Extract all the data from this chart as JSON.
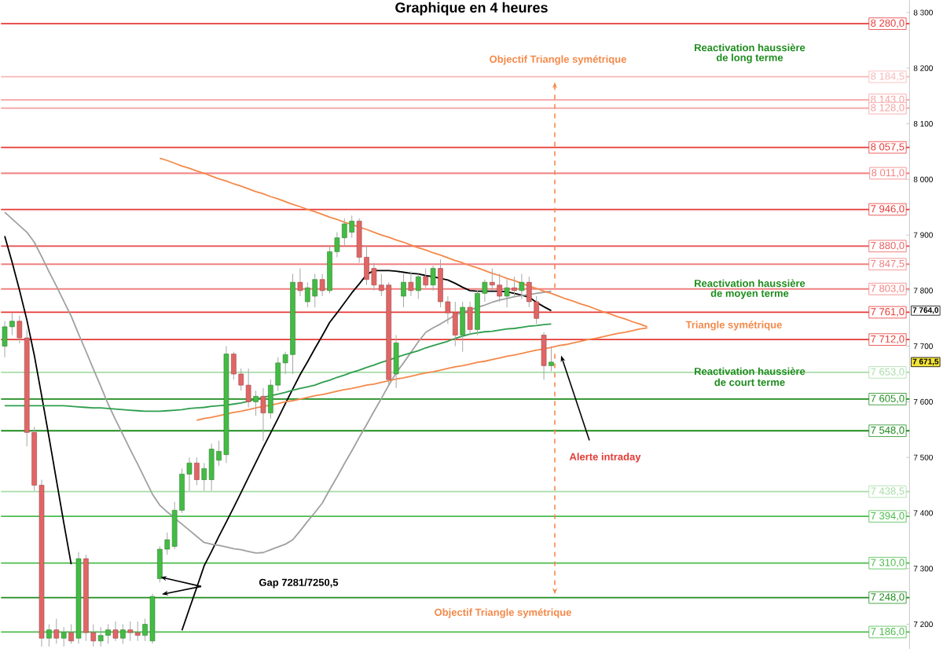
{
  "chart_data": {
    "type": "candlestick",
    "title": "Graphique en 4 heures",
    "categories": [
      null,
      null,
      null,
      null,
      null,
      null,
      null,
      null,
      null,
      null,
      null,
      null,
      null,
      null,
      null,
      null,
      null,
      null,
      null,
      null,
      null,
      null,
      null,
      null,
      null,
      null,
      null,
      null,
      null,
      null,
      null,
      null,
      null,
      null,
      null,
      null,
      null,
      null,
      null,
      null,
      null,
      null,
      null,
      null,
      null,
      null,
      null,
      null,
      null,
      null,
      null,
      null,
      null,
      null,
      null,
      null,
      null,
      null,
      null,
      null,
      null,
      null,
      null,
      null,
      null,
      null,
      null,
      null,
      null,
      null,
      null,
      null,
      null,
      null,
      null,
      null,
      null,
      null,
      null,
      null,
      null,
      null,
      null,
      null,
      null,
      null,
      null,
      null,
      null,
      null,
      null,
      null,
      null,
      null,
      null,
      null,
      null,
      null,
      null,
      null,
      null,
      null,
      null,
      null,
      null,
      null,
      null,
      null,
      null,
      null,
      null,
      null,
      null,
      null,
      null,
      null,
      null,
      null,
      null,
      null,
      null,
      null,
      null
    ],
    "ohlc": [
      [
        7700,
        7745,
        7680,
        7735
      ],
      [
        7735,
        7760,
        7720,
        7745
      ],
      [
        7745,
        7755,
        7705,
        7715
      ],
      [
        7715,
        7730,
        7520,
        7545
      ],
      [
        7545,
        7555,
        7440,
        7450
      ],
      [
        7450,
        7460,
        7160,
        7175
      ],
      [
        7175,
        7200,
        7160,
        7190
      ],
      [
        7190,
        7210,
        7165,
        7175
      ],
      [
        7175,
        7195,
        7160,
        7185
      ],
      [
        7185,
        7200,
        7165,
        7170
      ],
      [
        7175,
        7330,
        7165,
        7318
      ],
      [
        7318,
        7325,
        7170,
        7185
      ],
      [
        7185,
        7200,
        7160,
        7170
      ],
      [
        7170,
        7195,
        7160,
        7180
      ],
      [
        7180,
        7200,
        7165,
        7190
      ],
      [
        7190,
        7205,
        7170,
        7175
      ],
      [
        7175,
        7200,
        7165,
        7190
      ],
      [
        7190,
        7205,
        7170,
        7185
      ],
      [
        7185,
        7205,
        7170,
        7180
      ],
      [
        7180,
        7210,
        7170,
        7200
      ],
      [
        7170,
        7255,
        7165,
        7250
      ],
      [
        7282,
        7340,
        7275,
        7335
      ],
      [
        7335,
        7365,
        7325,
        7352
      ],
      [
        7340,
        7420,
        7335,
        7405
      ],
      [
        7405,
        7480,
        7400,
        7470
      ],
      [
        7470,
        7500,
        7440,
        7490
      ],
      [
        7490,
        7500,
        7450,
        7460
      ],
      [
        7460,
        7490,
        7440,
        7480
      ],
      [
        7460,
        7525,
        7440,
        7515
      ],
      [
        7495,
        7530,
        7485,
        7511
      ],
      [
        7505,
        7700,
        7490,
        7686
      ],
      [
        7686,
        7690,
        7640,
        7650
      ],
      [
        7650,
        7660,
        7620,
        7630
      ],
      [
        7630,
        7660,
        7590,
        7600
      ],
      [
        7600,
        7620,
        7575,
        7610
      ],
      [
        7610,
        7625,
        7530,
        7580
      ],
      [
        7580,
        7640,
        7570,
        7630
      ],
      [
        7630,
        7680,
        7620,
        7670
      ],
      [
        7670,
        7690,
        7650,
        7685
      ],
      [
        7685,
        7830,
        7650,
        7815
      ],
      [
        7815,
        7840,
        7790,
        7800
      ],
      [
        7780,
        7815,
        7770,
        7805
      ],
      [
        7790,
        7830,
        7770,
        7820
      ],
      [
        7820,
        7830,
        7790,
        7800
      ],
      [
        7800,
        7880,
        7795,
        7870
      ],
      [
        7870,
        7905,
        7860,
        7895
      ],
      [
        7895,
        7930,
        7880,
        7920
      ],
      [
        7905,
        7935,
        7895,
        7925
      ],
      [
        7925,
        7930,
        7850,
        7860
      ],
      [
        7860,
        7880,
        7810,
        7820
      ],
      [
        7840,
        7850,
        7800,
        7810
      ],
      [
        7810,
        7830,
        7790,
        7800
      ],
      [
        7810,
        7815,
        7630,
        7640
      ],
      [
        7650,
        7720,
        7625,
        7706
      ],
      [
        7790,
        7830,
        7770,
        7815
      ],
      [
        7815,
        7835,
        7790,
        7800
      ],
      [
        7800,
        7830,
        7785,
        7825
      ],
      [
        7825,
        7840,
        7805,
        7810
      ],
      [
        7810,
        7845,
        7800,
        7840
      ],
      [
        7840,
        7856,
        7770,
        7780
      ],
      [
        7780,
        7790,
        7740,
        7760
      ],
      [
        7760,
        7780,
        7700,
        7720
      ],
      [
        7720,
        7780,
        7690,
        7770
      ],
      [
        7770,
        7780,
        7720,
        7730
      ],
      [
        7730,
        7800,
        7720,
        7795
      ],
      [
        7795,
        7820,
        7780,
        7815
      ],
      [
        7815,
        7840,
        7800,
        7810
      ],
      [
        7810,
        7830,
        7780,
        7790
      ],
      [
        7790,
        7820,
        7770,
        7805
      ],
      [
        7805,
        7825,
        7790,
        7800
      ],
      [
        7800,
        7830,
        7785,
        7815
      ],
      [
        7815,
        7825,
        7770,
        7780
      ],
      [
        7780,
        7790,
        7740,
        7750
      ],
      [
        7720,
        7725,
        7640,
        7665
      ],
      [
        7665,
        7700,
        7655,
        7671.5
      ],
      null,
      null,
      null,
      null,
      null,
      null,
      null,
      null,
      null,
      null,
      null,
      null,
      null,
      null,
      null,
      null,
      null,
      null,
      null,
      null,
      null,
      null,
      null,
      null,
      null,
      null,
      null,
      null,
      null,
      null,
      null,
      null,
      null,
      null,
      null,
      null,
      null,
      null,
      null,
      null,
      null,
      null,
      null,
      null,
      null,
      null,
      null,
      null
    ],
    "series": [
      {
        "type": "line",
        "color": "#000000",
        "values": [
          7898,
          7851,
          7801,
          7747,
          7684,
          7611,
          7536,
          7459,
          7382,
          7308,
          null,
          null,
          null,
          null,
          null,
          null,
          null,
          null,
          null,
          null,
          null,
          null,
          null,
          null,
          7189,
          7228,
          7266,
          7305,
          7331,
          7358,
          7384,
          7410,
          7437,
          7464,
          7491,
          7518,
          7544,
          7570,
          7597,
          7623,
          7649,
          7672,
          7696,
          7719,
          7743,
          7760,
          7778,
          7796,
          7812,
          7829,
          7836,
          7836,
          7836,
          7835,
          7833,
          7831,
          7830,
          7827,
          7825,
          7822,
          7819,
          7813,
          7806,
          7800,
          7799,
          7799,
          7799,
          7799,
          7798,
          7795,
          7792,
          7788,
          7779,
          7771,
          7764,
          null,
          null,
          null,
          null,
          null,
          null,
          null,
          null,
          null,
          null,
          null,
          null,
          null,
          null,
          null,
          null,
          null,
          null,
          null,
          null,
          null,
          null,
          null,
          null,
          null,
          null,
          null,
          null,
          null,
          null,
          null,
          null,
          null,
          null,
          null,
          null,
          null,
          null,
          null,
          null,
          null,
          null,
          null,
          null,
          null,
          null,
          null,
          null
        ]
      },
      {
        "type": "line",
        "color": "#a0a0a0",
        "values": [
          7941,
          7929,
          7917,
          7905,
          7887,
          7861,
          7834,
          7808,
          7781,
          7754,
          7722,
          7691,
          7659,
          7628,
          7596,
          7568,
          7541,
          7514,
          7488,
          7461,
          7434,
          7414,
          7402,
          7391,
          7380,
          7369,
          7358,
          7347,
          7344,
          7342,
          7339,
          7336,
          7334,
          7331,
          7328,
          7329,
          7334,
          7339,
          7344,
          7352,
          7368,
          7385,
          7401,
          7418,
          7442,
          7465,
          7489,
          7512,
          7536,
          7559,
          7583,
          7606,
          7630,
          7652,
          7670,
          7689,
          7708,
          7725,
          7733,
          7740,
          7748,
          7756,
          7761,
          7765,
          7770,
          7774,
          7779,
          7783,
          7786,
          7789,
          7791,
          7793,
          7795,
          7797,
          7799,
          null,
          null,
          null,
          null,
          null,
          null,
          null,
          null,
          null,
          null,
          null,
          null,
          null,
          null,
          null,
          null,
          null,
          null,
          null,
          null,
          null,
          null,
          null,
          null,
          null,
          null,
          null,
          null,
          null,
          null,
          null,
          null,
          null,
          null,
          null,
          null,
          null,
          null,
          null,
          null,
          null,
          null,
          null,
          null,
          null,
          null,
          null,
          null
        ]
      },
      {
        "type": "line",
        "color": "#2e9e4e",
        "values": [
          7593,
          7593,
          7593,
          7593,
          7593,
          7593,
          7593,
          7593,
          7593,
          7592,
          7591,
          7590,
          7589,
          7589,
          7588,
          7587,
          7586,
          7585,
          7584,
          7583,
          7583,
          7583,
          7584,
          7585,
          7586,
          7588,
          7589,
          7590,
          7592,
          7593,
          7594,
          7596,
          7598,
          7601,
          7605,
          7608,
          7611,
          7614,
          7617,
          7621,
          7624,
          7627,
          7630,
          7635,
          7639,
          7644,
          7648,
          7653,
          7657,
          7662,
          7666,
          7671,
          7675,
          7680,
          7684,
          7688,
          7692,
          7697,
          7701,
          7705,
          7709,
          7714,
          7718,
          7722,
          7724,
          7726,
          7727,
          7729,
          7731,
          7732,
          7734,
          7736,
          7737,
          7739,
          7740,
          null,
          null,
          null,
          null,
          null,
          null,
          null,
          null,
          null,
          null,
          null,
          null,
          null,
          null,
          null,
          null,
          null,
          null,
          null,
          null,
          null,
          null,
          null,
          null,
          null,
          null,
          null,
          null,
          null,
          null,
          null,
          null,
          null,
          null,
          null,
          null,
          null,
          null,
          null,
          null,
          null,
          null,
          null,
          null,
          null,
          null,
          null,
          null
        ]
      },
      {
        "type": "line",
        "color": "#f4894a",
        "values": [
          null,
          null,
          null,
          null,
          null,
          null,
          null,
          null,
          null,
          null,
          null,
          null,
          null,
          null,
          null,
          null,
          null,
          null,
          null,
          null,
          null,
          8038,
          8034,
          8029,
          8024,
          8020,
          8015,
          8011,
          8006,
          8001,
          7997,
          7992,
          7988,
          7983,
          7978,
          7974,
          7969,
          7965,
          7960,
          7955,
          7951,
          7946,
          7942,
          7937,
          7932,
          7928,
          7923,
          7919,
          7914,
          7910,
          7905,
          7900,
          7896,
          7891,
          7887,
          7882,
          7877,
          7873,
          7868,
          7864,
          7859,
          7854,
          7850,
          7845,
          7841,
          7836,
          7831,
          7827,
          7822,
          7818,
          7813,
          7808,
          7804,
          7799,
          7795,
          7790,
          7785,
          7781,
          7776,
          7772,
          7767,
          7762,
          7758,
          7753,
          7749,
          7744,
          7740,
          7735,
          null,
          null,
          null,
          null,
          null,
          null,
          null,
          null,
          null,
          null,
          null,
          null,
          null,
          null,
          null,
          null,
          null,
          null,
          null,
          null,
          null,
          null,
          null,
          null,
          null,
          null,
          null,
          null,
          null,
          null,
          null,
          null,
          null,
          null,
          null
        ]
      },
      {
        "type": "line",
        "color": "#f4894a",
        "values": [
          null,
          null,
          null,
          null,
          null,
          null,
          null,
          null,
          null,
          null,
          null,
          null,
          null,
          null,
          null,
          null,
          null,
          null,
          null,
          null,
          null,
          null,
          null,
          null,
          null,
          null,
          7567,
          7570,
          7572,
          7575,
          7578,
          7581,
          7583,
          7586,
          7589,
          7592,
          7594,
          7597,
          7600,
          7602,
          7605,
          7608,
          7611,
          7613,
          7616,
          7619,
          7622,
          7624,
          7627,
          7630,
          7632,
          7635,
          7638,
          7641,
          7643,
          7646,
          7649,
          7652,
          7654,
          7657,
          7660,
          7663,
          7665,
          7668,
          7671,
          7673,
          7676,
          7679,
          7682,
          7684,
          7687,
          7690,
          7693,
          7695,
          7698,
          7701,
          7703,
          7706,
          7709,
          7712,
          7714,
          7717,
          7720,
          7723,
          7725,
          7728,
          7731,
          7733,
          null,
          null,
          null,
          null,
          null,
          null,
          null,
          null,
          null,
          null,
          null,
          null,
          null,
          null,
          null,
          null,
          null,
          null,
          null,
          null,
          null,
          null,
          null,
          null,
          null,
          null,
          null,
          null,
          null,
          null,
          null,
          null,
          null,
          null,
          null
        ]
      }
    ],
    "ylim": [
      7155,
      8322
    ],
    "yticks": [
      {
        "value": 7200,
        "label": "7 200"
      },
      {
        "value": 7300,
        "label": "7 300"
      },
      {
        "value": 7400,
        "label": "7 400"
      },
      {
        "value": 7500,
        "label": "7 500"
      },
      {
        "value": 7600,
        "label": "7 600"
      },
      {
        "value": 7700,
        "label": "7 700"
      },
      {
        "value": 7800,
        "label": "7 800"
      },
      {
        "value": 7900,
        "label": "7 900"
      },
      {
        "value": 8000,
        "label": "8 000"
      },
      {
        "value": 8100,
        "label": "8 100"
      },
      {
        "value": 8200,
        "label": "8 200"
      },
      {
        "value": 8300,
        "label": "8 300"
      }
    ],
    "tick_labels": "y",
    "ref_lines": [
      {
        "axis": "y",
        "value": 8280,
        "label": "8 280,0",
        "color": "#e53935"
      },
      {
        "axis": "y",
        "value": 8184.5,
        "label": "8 184,5",
        "color": "#f7b8b8"
      },
      {
        "axis": "y",
        "value": 8143,
        "label": "8 143,0",
        "color": "#f4a0a0"
      },
      {
        "axis": "y",
        "value": 8128,
        "label": "8 128,0",
        "color": "#f4a0a0"
      },
      {
        "axis": "y",
        "value": 8057.5,
        "label": "8 057,5",
        "color": "#e53935"
      },
      {
        "axis": "y",
        "value": 8011,
        "label": "8 011,0",
        "color": "#f08080"
      },
      {
        "axis": "y",
        "value": 7946,
        "label": "7 946,0",
        "color": "#e53935"
      },
      {
        "axis": "y",
        "value": 7880,
        "label": "7 880,0",
        "color": "#e86060"
      },
      {
        "axis": "y",
        "value": 7847.5,
        "label": "7 847,5",
        "color": "#f08080"
      },
      {
        "axis": "y",
        "value": 7803,
        "label": "7 803,0",
        "color": "#f08080"
      },
      {
        "axis": "y",
        "value": 7761,
        "label": "7 761,0",
        "color": "#e53935"
      },
      {
        "axis": "y",
        "value": 7712,
        "label": "7 712,0",
        "color": "#e53935"
      },
      {
        "axis": "y",
        "value": 7653,
        "label": "7 653,0",
        "color": "#a8dca8"
      },
      {
        "axis": "y",
        "value": 7605,
        "label": "7 605,0",
        "color": "#1e8c1e"
      },
      {
        "axis": "y",
        "value": 7548,
        "label": "7 548,0",
        "color": "#1e8c1e"
      },
      {
        "axis": "y",
        "value": 7438.5,
        "label": "7 438,5",
        "color": "#a8dca8"
      },
      {
        "axis": "y",
        "value": 7394,
        "label": "7 394,0",
        "color": "#4cbb4c"
      },
      {
        "axis": "y",
        "value": 7310,
        "label": "7 310,0",
        "color": "#4cbb4c"
      },
      {
        "axis": "y",
        "value": 7248,
        "label": "7 248,0",
        "color": "#1e8c1e"
      },
      {
        "axis": "y",
        "value": 7186,
        "label": "7 186,0",
        "color": "#4cbb4c"
      }
    ],
    "annotations": [
      "Objectif Triangle symétrique",
      "Reactivation haussière",
      "de long terme",
      "Reactivation haussière",
      "de moyen terme",
      "Triangle symétrique",
      "Reactivation haussière",
      "de court terme",
      "Alerte intraday",
      "Gap 7281/7250,5",
      "Objectif Triangle symétrique",
      {
        "text": "7 764,0",
        "y": 7764
      },
      {
        "text": "7 671,5",
        "y": 7671.5
      }
    ]
  }
}
